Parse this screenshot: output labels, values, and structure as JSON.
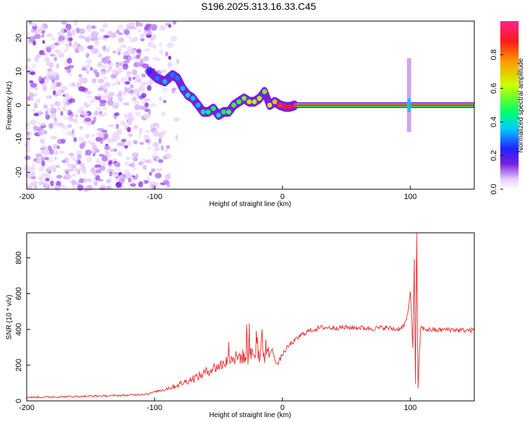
{
  "title": "S196.2025.313.16.33.C45",
  "chart_data": [
    {
      "type": "heatmap",
      "title": "S196.2025.313.16.33.C45",
      "xlabel": "Height of straight line (km)",
      "ylabel": "Frequency (Hz)",
      "xlim": [
        -200,
        150
      ],
      "ylim": [
        -25,
        25
      ],
      "xticks": [
        -200,
        -100,
        0,
        100
      ],
      "yticks": [
        -20,
        -10,
        0,
        10,
        20
      ],
      "colorbar": {
        "label": "Normalized spectral amplitude",
        "range": [
          0,
          1
        ],
        "ticks": [
          0.0,
          0.2,
          0.4,
          0.6,
          0.8
        ],
        "tick_labels": [
          "0.0",
          "0.2",
          "0.4",
          "0.6",
          "0.8"
        ]
      },
      "noise_region_x": [
        -200,
        -105
      ],
      "signal_track": {
        "x": [
          -104,
          -98,
          -92,
          -86,
          -82,
          -78,
          -74,
          -70,
          -66,
          -62,
          -58,
          -54,
          -50,
          -46,
          -42,
          -38,
          -34,
          -30,
          -26,
          -22,
          -18,
          -14,
          -10,
          -6,
          -2,
          2,
          6,
          10
        ],
        "freq": [
          10,
          8,
          7,
          9,
          8,
          5,
          3,
          2,
          0,
          -2,
          -2,
          -1,
          -3,
          -2,
          -2,
          0,
          1,
          2,
          1,
          1,
          2,
          4,
          0,
          1,
          0,
          -0.5,
          -0.5,
          0
        ],
        "amplitude": [
          0.25,
          0.3,
          0.35,
          0.3,
          0.3,
          0.35,
          0.4,
          0.35,
          0.35,
          0.4,
          0.45,
          0.45,
          0.4,
          0.45,
          0.5,
          0.5,
          0.5,
          0.55,
          0.6,
          0.6,
          0.6,
          0.55,
          0.65,
          0.7,
          0.85,
          0.9,
          0.9,
          0.95
        ]
      },
      "carrier": {
        "x_start": 10,
        "x_end": 150,
        "freq": 0,
        "amplitude": 1.0
      },
      "glitch": {
        "x": 99,
        "freq_range": [
          -8,
          14
        ]
      }
    },
    {
      "type": "line",
      "xlabel": "Height of straight line (km)",
      "ylabel": "SNR (10 * v/v)",
      "xlim": [
        -200,
        150
      ],
      "ylim": [
        0,
        940
      ],
      "xticks": [
        -200,
        -100,
        0,
        100
      ],
      "yticks": [
        0,
        200,
        400,
        600,
        800
      ],
      "series": [
        {
          "name": "SNR",
          "color": "#e83a3a",
          "x": [
            -200,
            -180,
            -160,
            -140,
            -120,
            -105,
            -95,
            -85,
            -75,
            -65,
            -55,
            -48,
            -42,
            -36,
            -32,
            -28,
            -24,
            -20,
            -16,
            -12,
            -8,
            -4,
            0,
            5,
            10,
            15,
            20,
            30,
            40,
            50,
            60,
            70,
            80,
            90,
            95,
            98,
            100,
            102,
            103,
            104,
            105,
            106,
            108,
            112,
            120,
            130,
            140,
            150
          ],
          "y": [
            20,
            22,
            25,
            28,
            32,
            40,
            60,
            80,
            110,
            140,
            180,
            200,
            230,
            240,
            250,
            240,
            260,
            270,
            250,
            260,
            280,
            200,
            260,
            310,
            340,
            370,
            390,
            410,
            410,
            410,
            410,
            405,
            410,
            400,
            420,
            480,
            620,
            300,
            780,
            100,
            940,
            60,
            410,
            400,
            395,
            400,
            395,
            395
          ]
        }
      ]
    }
  ]
}
